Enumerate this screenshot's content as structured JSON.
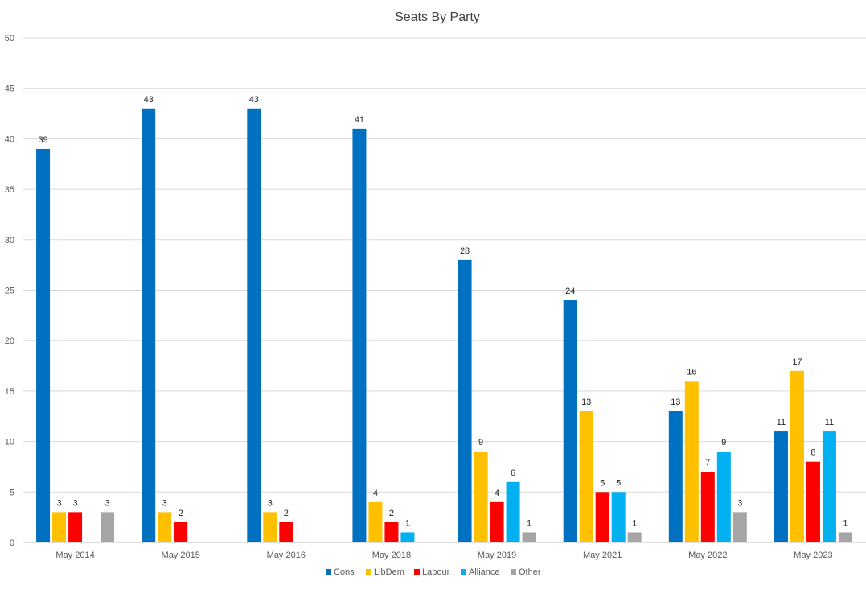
{
  "chart_data": {
    "type": "bar",
    "title": "Seats By Party",
    "categories": [
      "May 2014",
      "May 2015",
      "May 2016",
      "May 2018",
      "May 2019",
      "May 2021",
      "May 2022",
      "May 2023"
    ],
    "series": [
      {
        "name": "Cons",
        "color": "#0070C0",
        "values": [
          39,
          43,
          43,
          41,
          28,
          24,
          13,
          11
        ]
      },
      {
        "name": "LibDem",
        "color": "#FFC000",
        "values": [
          3,
          3,
          3,
          4,
          9,
          13,
          16,
          17
        ]
      },
      {
        "name": "Labour",
        "color": "#FF0000",
        "values": [
          3,
          2,
          2,
          2,
          4,
          5,
          7,
          8
        ]
      },
      {
        "name": "Alliance",
        "color": "#00B0F0",
        "values": [
          null,
          null,
          null,
          1,
          6,
          5,
          9,
          11
        ]
      },
      {
        "name": "Other",
        "color": "#A5A5A5",
        "values": [
          3,
          null,
          null,
          null,
          1,
          1,
          3,
          1
        ]
      }
    ],
    "ylim": [
      0,
      50
    ],
    "yticks": [
      0,
      5,
      10,
      15,
      20,
      25,
      30,
      35,
      40,
      45,
      50
    ],
    "grid": true,
    "legend_position": "bottom",
    "data_labels": true,
    "xlabel": "",
    "ylabel": ""
  }
}
